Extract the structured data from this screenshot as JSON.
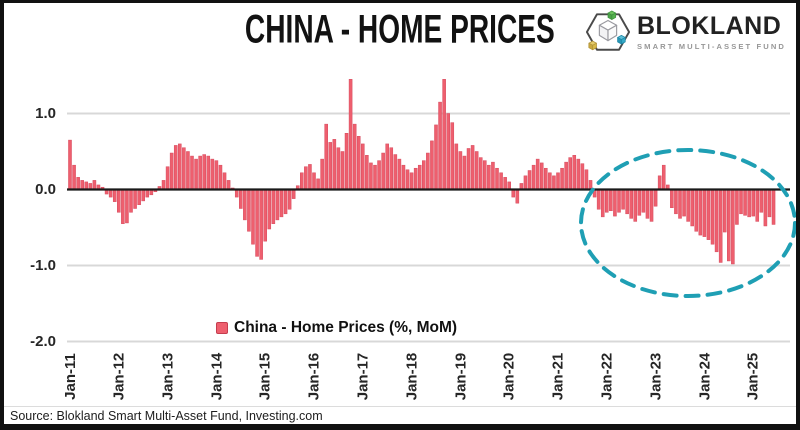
{
  "header": {
    "title": "CHINA - HOME PRICES"
  },
  "logo": {
    "name": "BLOKLAND",
    "subtitle": "SMART MULTI-ASSET FUND",
    "cube_colors": {
      "green": "#55b24e",
      "yellow": "#d8b949",
      "teal": "#33a9c6"
    }
  },
  "legend": {
    "label": "China - Home Prices (%, MoM)",
    "marker_color": "#ee5f6e"
  },
  "footer": {
    "source": "Source: Blokland Smart Multi-Asset Fund, Investing.com"
  },
  "chart_data": {
    "type": "bar",
    "title": "CHINA - HOME PRICES",
    "frequency": "monthly",
    "x_start": "Jan-2011",
    "x_end": "Jun-2025",
    "x_tick_labels": [
      "Jan-11",
      "Jan-12",
      "Jan-13",
      "Jan-14",
      "Jan-15",
      "Jan-16",
      "Jan-17",
      "Jan-18",
      "Jan-19",
      "Jan-20",
      "Jan-21",
      "Jan-22",
      "Jan-23",
      "Jan-24",
      "Jan-25"
    ],
    "y_ticks": [
      1.0,
      0.0,
      -1.0,
      -2.0
    ],
    "ylim": [
      -2.3,
      1.6
    ],
    "grid": true,
    "legend_position": "bottom-center",
    "series": [
      {
        "name": "China - Home Prices (%, MoM)",
        "color": "#ee5f6e",
        "edge_color": "#d64b5e",
        "values": [
          0.65,
          0.32,
          0.16,
          0.12,
          0.1,
          0.08,
          0.12,
          0.06,
          0.03,
          -0.06,
          -0.1,
          -0.16,
          -0.3,
          -0.45,
          -0.44,
          -0.3,
          -0.25,
          -0.2,
          -0.15,
          -0.1,
          -0.07,
          -0.03,
          0.04,
          0.12,
          0.3,
          0.48,
          0.58,
          0.6,
          0.55,
          0.5,
          0.44,
          0.4,
          0.44,
          0.46,
          0.44,
          0.4,
          0.38,
          0.32,
          0.22,
          0.12,
          0.02,
          -0.1,
          -0.25,
          -0.4,
          -0.55,
          -0.72,
          -0.88,
          -0.92,
          -0.68,
          -0.52,
          -0.45,
          -0.4,
          -0.36,
          -0.32,
          -0.26,
          -0.12,
          0.05,
          0.22,
          0.3,
          0.33,
          0.22,
          0.14,
          0.4,
          0.86,
          0.62,
          0.66,
          0.55,
          0.5,
          0.74,
          1.45,
          0.86,
          0.7,
          0.6,
          0.45,
          0.35,
          0.32,
          0.38,
          0.48,
          0.6,
          0.55,
          0.46,
          0.4,
          0.32,
          0.26,
          0.22,
          0.28,
          0.32,
          0.38,
          0.48,
          0.64,
          0.85,
          1.15,
          1.45,
          1.0,
          0.88,
          0.6,
          0.5,
          0.44,
          0.54,
          0.58,
          0.5,
          0.42,
          0.38,
          0.32,
          0.36,
          0.28,
          0.22,
          0.16,
          0.1,
          -0.1,
          -0.18,
          0.08,
          0.18,
          0.25,
          0.32,
          0.4,
          0.35,
          0.28,
          0.22,
          0.18,
          0.22,
          0.28,
          0.36,
          0.42,
          0.45,
          0.4,
          0.34,
          0.26,
          0.12,
          -0.1,
          -0.26,
          -0.36,
          -0.3,
          -0.28,
          -0.35,
          -0.3,
          -0.26,
          -0.32,
          -0.38,
          -0.42,
          -0.34,
          -0.3,
          -0.38,
          -0.42,
          -0.22,
          0.18,
          0.32,
          0.06,
          -0.24,
          -0.32,
          -0.38,
          -0.35,
          -0.42,
          -0.48,
          -0.55,
          -0.6,
          -0.62,
          -0.66,
          -0.72,
          -0.82,
          -0.96,
          -0.56,
          -0.94,
          -0.98,
          -0.46,
          -0.32,
          -0.34,
          -0.36,
          -0.35,
          -0.42,
          -0.3,
          -0.48,
          -0.36,
          -0.46
        ]
      }
    ],
    "annotation_ellipse": {
      "description": "dashed ellipse highlighting the persistent negative period 2022-2025",
      "color": "#1f9fb4"
    }
  }
}
